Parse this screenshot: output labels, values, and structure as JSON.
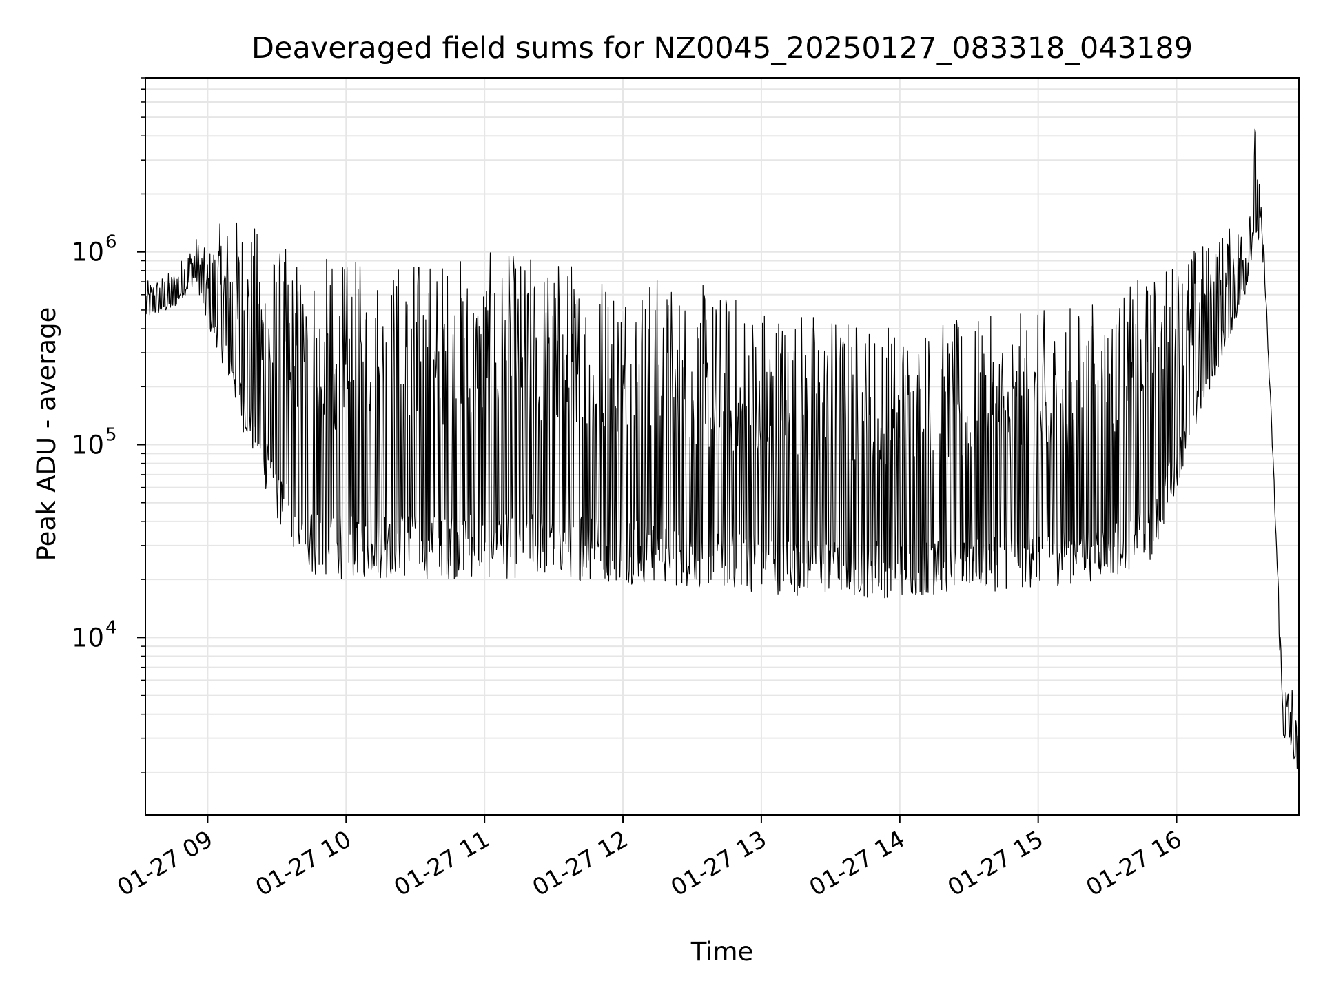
{
  "chart_data": {
    "type": "line",
    "title": "Deaveraged field sums for NZ0045_20250127_083318_043189",
    "xlabel": "Time",
    "ylabel": "Peak ADU - average",
    "y_scale": "log",
    "grid": true,
    "xlim": [
      "2025-01-27 08:33",
      "2025-01-27 16:53"
    ],
    "ylim": [
      1200,
      8000000
    ],
    "x_ticks": [
      {
        "value": "2025-01-27 09:00",
        "label": "01-27 09"
      },
      {
        "value": "2025-01-27 10:00",
        "label": "01-27 10"
      },
      {
        "value": "2025-01-27 11:00",
        "label": "01-27 11"
      },
      {
        "value": "2025-01-27 12:00",
        "label": "01-27 12"
      },
      {
        "value": "2025-01-27 13:00",
        "label": "01-27 13"
      },
      {
        "value": "2025-01-27 14:00",
        "label": "01-27 14"
      },
      {
        "value": "2025-01-27 15:00",
        "label": "01-27 15"
      },
      {
        "value": "2025-01-27 16:00",
        "label": "01-27 16"
      }
    ],
    "y_ticks": [
      {
        "value": 10000,
        "base": "10",
        "exp": "4"
      },
      {
        "value": 100000,
        "base": "10",
        "exp": "5"
      },
      {
        "value": 1000000,
        "base": "10",
        "exp": "6"
      }
    ],
    "series": [
      {
        "color": "#000000",
        "note_style": "dense oscillating line",
        "x": [
          "2025-01-27 08:33",
          "2025-01-27 08:45",
          "2025-01-27 08:55",
          "2025-01-27 09:00",
          "2025-01-27 09:05",
          "2025-01-27 09:15",
          "2025-01-27 09:30",
          "2025-01-27 09:45",
          "2025-01-27 10:00",
          "2025-01-27 10:30",
          "2025-01-27 11:00",
          "2025-01-27 11:30",
          "2025-01-27 12:00",
          "2025-01-27 12:30",
          "2025-01-27 13:00",
          "2025-01-27 13:30",
          "2025-01-27 14:00",
          "2025-01-27 14:30",
          "2025-01-27 15:00",
          "2025-01-27 15:30",
          "2025-01-27 15:50",
          "2025-01-27 16:00",
          "2025-01-27 16:15",
          "2025-01-27 16:30",
          "2025-01-27 16:34",
          "2025-01-27 16:38",
          "2025-01-27 16:42",
          "2025-01-27 16:46",
          "2025-01-27 16:50",
          "2025-01-27 16:53"
        ],
        "y_upper": [
          700000,
          800000,
          1200000,
          1000000,
          1400000,
          1600000,
          1100000,
          1000000,
          900000,
          1000000,
          1000000,
          1000000,
          900000,
          700000,
          600000,
          500000,
          450000,
          450000,
          500000,
          600000,
          800000,
          1000000,
          1200000,
          1500000,
          5000000,
          1000000,
          80000,
          6000,
          6000,
          3000
        ],
        "y_lower": [
          450000,
          500000,
          700000,
          400000,
          300000,
          120000,
          40000,
          20000,
          20000,
          20000,
          20000,
          20000,
          19000,
          18000,
          17000,
          16000,
          16000,
          17000,
          18000,
          20000,
          25000,
          60000,
          200000,
          600000,
          1200000,
          800000,
          70000,
          3000,
          2500,
          1800
        ]
      }
    ]
  }
}
